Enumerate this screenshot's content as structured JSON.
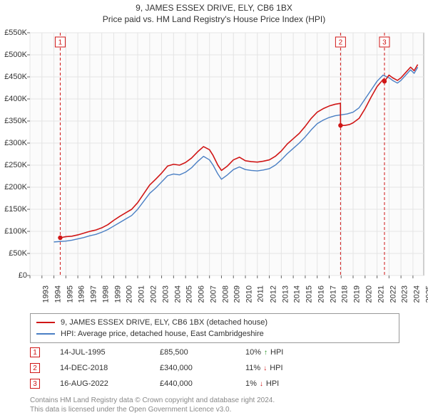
{
  "title_line1": "9, JAMES ESSEX DRIVE, ELY, CB6 1BX",
  "title_line2": "Price paid vs. HM Land Registry's House Price Index (HPI)",
  "chart": {
    "type": "line",
    "background_color": "#ffffff",
    "plot_background_color": "#fbfbfb",
    "grid_color": "#e4e4e4",
    "axis_color": "#666666",
    "tick_font_size": 11,
    "x": {
      "min": 1993,
      "max": 2025.9,
      "ticks": [
        1993,
        1994,
        1995,
        1996,
        1997,
        1998,
        1999,
        2000,
        2001,
        2002,
        2003,
        2004,
        2005,
        2006,
        2007,
        2008,
        2009,
        2010,
        2011,
        2012,
        2013,
        2014,
        2015,
        2016,
        2017,
        2018,
        2019,
        2020,
        2021,
        2022,
        2023,
        2024,
        2025
      ]
    },
    "y": {
      "min": 0,
      "max": 550000,
      "ticks": [
        0,
        50000,
        100000,
        150000,
        200000,
        250000,
        300000,
        350000,
        400000,
        450000,
        500000,
        550000
      ],
      "tick_labels": [
        "£0",
        "£50K",
        "£100K",
        "£150K",
        "£200K",
        "£250K",
        "£300K",
        "£350K",
        "£400K",
        "£450K",
        "£500K",
        "£550K"
      ]
    },
    "sale_markers": [
      {
        "n": "1",
        "x": 1995.53,
        "y": 85500,
        "step_to_y": 85500
      },
      {
        "n": "2",
        "x": 2018.95,
        "y": 340000,
        "step_to_y": 340000
      },
      {
        "n": "3",
        "x": 2022.62,
        "y": 440000,
        "step_to_y": 440000
      }
    ],
    "marker_line_color": "#d01616",
    "marker_box_border": "#d01616",
    "marker_box_fill": "#ffffff",
    "marker_box_text": "#d01616",
    "marker_dash": "4,3",
    "series": [
      {
        "name": "price_paid",
        "label": "9, JAMES ESSEX DRIVE, ELY, CB6 1BX (detached house)",
        "color": "#d01616",
        "width": 1.6,
        "data": [
          [
            1995.53,
            85500
          ],
          [
            1996.0,
            88000
          ],
          [
            1996.5,
            89000
          ],
          [
            1997.0,
            92000
          ],
          [
            1997.5,
            96000
          ],
          [
            1998.0,
            100000
          ],
          [
            1998.5,
            103000
          ],
          [
            1999.0,
            108000
          ],
          [
            1999.5,
            115000
          ],
          [
            2000.0,
            125000
          ],
          [
            2000.5,
            134000
          ],
          [
            2001.0,
            142000
          ],
          [
            2001.5,
            150000
          ],
          [
            2002.0,
            165000
          ],
          [
            2002.5,
            185000
          ],
          [
            2003.0,
            205000
          ],
          [
            2003.5,
            218000
          ],
          [
            2004.0,
            232000
          ],
          [
            2004.5,
            248000
          ],
          [
            2005.0,
            252000
          ],
          [
            2005.5,
            250000
          ],
          [
            2006.0,
            256000
          ],
          [
            2006.5,
            266000
          ],
          [
            2007.0,
            280000
          ],
          [
            2007.5,
            292000
          ],
          [
            2008.0,
            285000
          ],
          [
            2008.3,
            272000
          ],
          [
            2008.7,
            250000
          ],
          [
            2009.0,
            238000
          ],
          [
            2009.5,
            248000
          ],
          [
            2010.0,
            262000
          ],
          [
            2010.5,
            268000
          ],
          [
            2011.0,
            260000
          ],
          [
            2011.5,
            258000
          ],
          [
            2012.0,
            257000
          ],
          [
            2012.5,
            259000
          ],
          [
            2013.0,
            262000
          ],
          [
            2013.5,
            270000
          ],
          [
            2014.0,
            282000
          ],
          [
            2014.5,
            298000
          ],
          [
            2015.0,
            310000
          ],
          [
            2015.5,
            322000
          ],
          [
            2016.0,
            338000
          ],
          [
            2016.5,
            356000
          ],
          [
            2017.0,
            370000
          ],
          [
            2017.5,
            378000
          ],
          [
            2018.0,
            384000
          ],
          [
            2018.5,
            388000
          ],
          [
            2018.94,
            390000
          ],
          [
            2018.95,
            340000
          ],
          [
            2019.3,
            340000
          ],
          [
            2019.7,
            342000
          ],
          [
            2020.0,
            346000
          ],
          [
            2020.5,
            356000
          ],
          [
            2021.0,
            378000
          ],
          [
            2021.5,
            404000
          ],
          [
            2022.0,
            428000
          ],
          [
            2022.5,
            444000
          ],
          [
            2022.61,
            446000
          ],
          [
            2022.62,
            440000
          ],
          [
            2023.0,
            454000
          ],
          [
            2023.3,
            448000
          ],
          [
            2023.7,
            442000
          ],
          [
            2024.0,
            448000
          ],
          [
            2024.4,
            460000
          ],
          [
            2024.8,
            472000
          ],
          [
            2025.1,
            464000
          ],
          [
            2025.4,
            478000
          ]
        ]
      },
      {
        "name": "hpi",
        "label": "HPI: Average price, detached house, East Cambridgeshire",
        "color": "#4a7fc4",
        "width": 1.4,
        "data": [
          [
            1995.0,
            76000
          ],
          [
            1995.5,
            77000
          ],
          [
            1996.0,
            78000
          ],
          [
            1996.5,
            80000
          ],
          [
            1997.0,
            83000
          ],
          [
            1997.5,
            86000
          ],
          [
            1998.0,
            90000
          ],
          [
            1998.5,
            93000
          ],
          [
            1999.0,
            98000
          ],
          [
            1999.5,
            104000
          ],
          [
            2000.0,
            112000
          ],
          [
            2000.5,
            120000
          ],
          [
            2001.0,
            128000
          ],
          [
            2001.5,
            136000
          ],
          [
            2002.0,
            150000
          ],
          [
            2002.5,
            168000
          ],
          [
            2003.0,
            186000
          ],
          [
            2003.5,
            198000
          ],
          [
            2004.0,
            212000
          ],
          [
            2004.5,
            226000
          ],
          [
            2005.0,
            230000
          ],
          [
            2005.5,
            228000
          ],
          [
            2006.0,
            234000
          ],
          [
            2006.5,
            244000
          ],
          [
            2007.0,
            258000
          ],
          [
            2007.5,
            270000
          ],
          [
            2008.0,
            262000
          ],
          [
            2008.3,
            250000
          ],
          [
            2008.7,
            230000
          ],
          [
            2009.0,
            218000
          ],
          [
            2009.5,
            228000
          ],
          [
            2010.0,
            240000
          ],
          [
            2010.5,
            246000
          ],
          [
            2011.0,
            240000
          ],
          [
            2011.5,
            238000
          ],
          [
            2012.0,
            237000
          ],
          [
            2012.5,
            239000
          ],
          [
            2013.0,
            242000
          ],
          [
            2013.5,
            250000
          ],
          [
            2014.0,
            262000
          ],
          [
            2014.5,
            276000
          ],
          [
            2015.0,
            288000
          ],
          [
            2015.5,
            300000
          ],
          [
            2016.0,
            314000
          ],
          [
            2016.5,
            330000
          ],
          [
            2017.0,
            344000
          ],
          [
            2017.5,
            352000
          ],
          [
            2018.0,
            358000
          ],
          [
            2018.5,
            362000
          ],
          [
            2019.0,
            364000
          ],
          [
            2019.5,
            366000
          ],
          [
            2020.0,
            370000
          ],
          [
            2020.5,
            380000
          ],
          [
            2021.0,
            400000
          ],
          [
            2021.5,
            420000
          ],
          [
            2022.0,
            440000
          ],
          [
            2022.5,
            454000
          ],
          [
            2023.0,
            448000
          ],
          [
            2023.3,
            442000
          ],
          [
            2023.7,
            436000
          ],
          [
            2024.0,
            442000
          ],
          [
            2024.4,
            454000
          ],
          [
            2024.8,
            466000
          ],
          [
            2025.1,
            458000
          ],
          [
            2025.4,
            472000
          ]
        ]
      }
    ]
  },
  "legend": [
    {
      "color": "#d01616",
      "label": "9, JAMES ESSEX DRIVE, ELY, CB6 1BX (detached house)"
    },
    {
      "color": "#4a7fc4",
      "label": "HPI: Average price, detached house, East Cambridgeshire"
    }
  ],
  "sales": [
    {
      "n": "1",
      "date": "14-JUL-1995",
      "price": "£85,500",
      "diff_pct": "10%",
      "diff_dir": "up",
      "diff_label": "HPI"
    },
    {
      "n": "2",
      "date": "14-DEC-2018",
      "price": "£340,000",
      "diff_pct": "11%",
      "diff_dir": "down",
      "diff_label": "HPI"
    },
    {
      "n": "3",
      "date": "16-AUG-2022",
      "price": "£440,000",
      "diff_pct": "1%",
      "diff_dir": "down",
      "diff_label": "HPI"
    }
  ],
  "sale_marker_color": "#d01616",
  "arrow_up_color": "#1a8f1a",
  "arrow_down_color": "#d01616",
  "attribution_line1": "Contains HM Land Registry data © Crown copyright and database right 2024.",
  "attribution_line2": "This data is licensed under the Open Government Licence v3.0."
}
